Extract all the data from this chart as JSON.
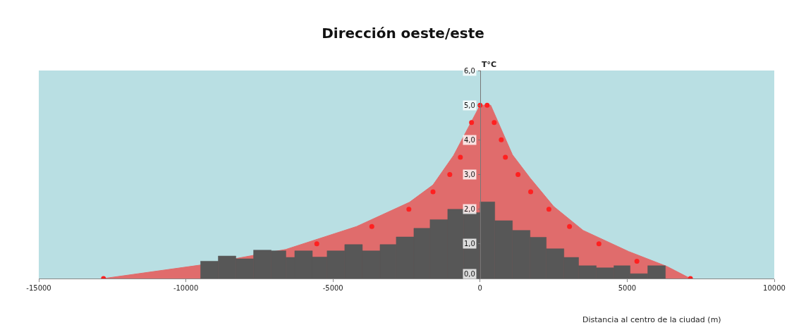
{
  "chart_data": {
    "type": "area",
    "title": "Dirección oeste/este",
    "xlabel": "Distancia al centro de la ciudad (m)",
    "ylabel": "T°C",
    "xlim": [
      -15000,
      10000
    ],
    "xticks": [
      -15000,
      -10000,
      -5000,
      0,
      5000,
      10000
    ],
    "ylim": [
      0,
      6
    ],
    "yticks": [
      {
        "value": 0,
        "label": "0,0"
      },
      {
        "value": 1,
        "label": "1,0"
      },
      {
        "value": 2,
        "label": "2,0"
      },
      {
        "value": 3,
        "label": "3,0"
      },
      {
        "value": 4,
        "label": "4,0"
      },
      {
        "value": 5,
        "label": "5,0"
      },
      {
        "value": 6,
        "label": "6,0"
      }
    ],
    "series": [
      {
        "color": "#e06c6c",
        "x": [
          -12800,
          -9500,
          -6600,
          -4200,
          -2400,
          -1600,
          -900,
          0,
          360,
          1100,
          1700,
          2500,
          3500,
          5050,
          6350,
          7150
        ],
        "values": [
          0,
          0.39,
          0.84,
          1.5,
          2.2,
          2.7,
          3.55,
          5.0,
          5.0,
          3.57,
          2.9,
          2.08,
          1.39,
          0.78,
          0.35,
          0
        ]
      },
      {
        "type": "histogram",
        "color": "#575757",
        "bins": [
          -9500,
          -8900,
          -8300,
          -7700,
          -7100,
          -6600,
          -6300,
          -5700,
          -5200,
          -4600,
          -4000,
          -3400,
          -2850,
          -2250,
          -1700,
          -1100,
          -550,
          0,
          500,
          1100,
          1700,
          2250,
          2850,
          3350,
          3950,
          4550,
          5100,
          5700,
          6300
        ],
        "values": [
          0.5,
          0.65,
          0.57,
          0.82,
          0.8,
          0.61,
          0.8,
          0.62,
          0.8,
          0.98,
          0.8,
          0.98,
          1.2,
          1.45,
          1.7,
          2.0,
          1.9,
          2.21,
          1.67,
          1.39,
          1.19,
          0.86,
          0.61,
          0.37,
          0.31,
          0.37,
          0.14,
          0.37
        ]
      },
      {
        "type": "scatter",
        "color": "#ff2020",
        "marker": "circle",
        "x": [
          -12800,
          -5550,
          -3680,
          -2420,
          -1600,
          -1030,
          -670,
          -290,
          0,
          240,
          480,
          720,
          860,
          1290,
          1720,
          2340,
          3040,
          4040,
          5330,
          7150
        ],
        "values": [
          0,
          1.0,
          1.5,
          2.0,
          2.5,
          3.0,
          3.5,
          4.5,
          5.0,
          5.0,
          4.5,
          4.0,
          3.5,
          3.0,
          2.5,
          2.0,
          1.5,
          1.0,
          0.5,
          0
        ]
      }
    ]
  }
}
